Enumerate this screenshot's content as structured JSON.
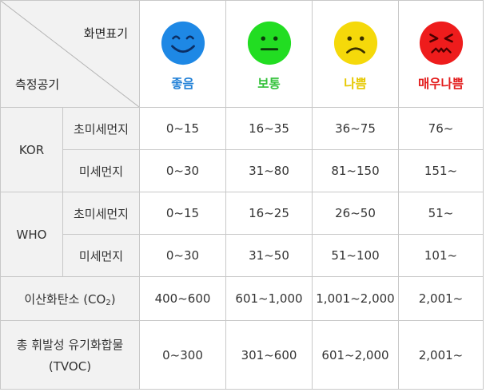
{
  "header": {
    "display_label": "화면표기",
    "measure_label": "측정공기",
    "levels": [
      {
        "label": "좋음",
        "face": "smiling-face-icon",
        "color": "#1e88e5"
      },
      {
        "label": "보통",
        "face": "neutral-face-icon",
        "color": "#22dd22"
      },
      {
        "label": "나쁨",
        "face": "frowning-face-icon",
        "color": "#f5d90a"
      },
      {
        "label": "매우나쁨",
        "face": "angry-face-icon",
        "color": "#ee1c1c"
      }
    ]
  },
  "groups": [
    {
      "name": "KOR",
      "rows": [
        {
          "label": "초미세먼지",
          "values": [
            "0~15",
            "16~35",
            "36~75",
            "76~"
          ]
        },
        {
          "label": "미세먼지",
          "values": [
            "0~30",
            "31~80",
            "81~150",
            "151~"
          ]
        }
      ]
    },
    {
      "name": "WHO",
      "rows": [
        {
          "label": "초미세먼지",
          "values": [
            "0~15",
            "16~25",
            "26~50",
            "51~"
          ]
        },
        {
          "label": "미세먼지",
          "values": [
            "0~30",
            "31~50",
            "51~100",
            "101~"
          ]
        }
      ]
    }
  ],
  "co2": {
    "label": "이산화탄소 (CO",
    "sub": "2",
    "close": ")",
    "values": [
      "400~600",
      "601~1,000",
      "1,001~2,000",
      "2,001~"
    ]
  },
  "tvoc": {
    "label_line1": "총 휘발성 유기화합물",
    "label_line2": "(TVOC)",
    "values": [
      "0~300",
      "301~600",
      "601~2,000",
      "2,001~"
    ]
  }
}
